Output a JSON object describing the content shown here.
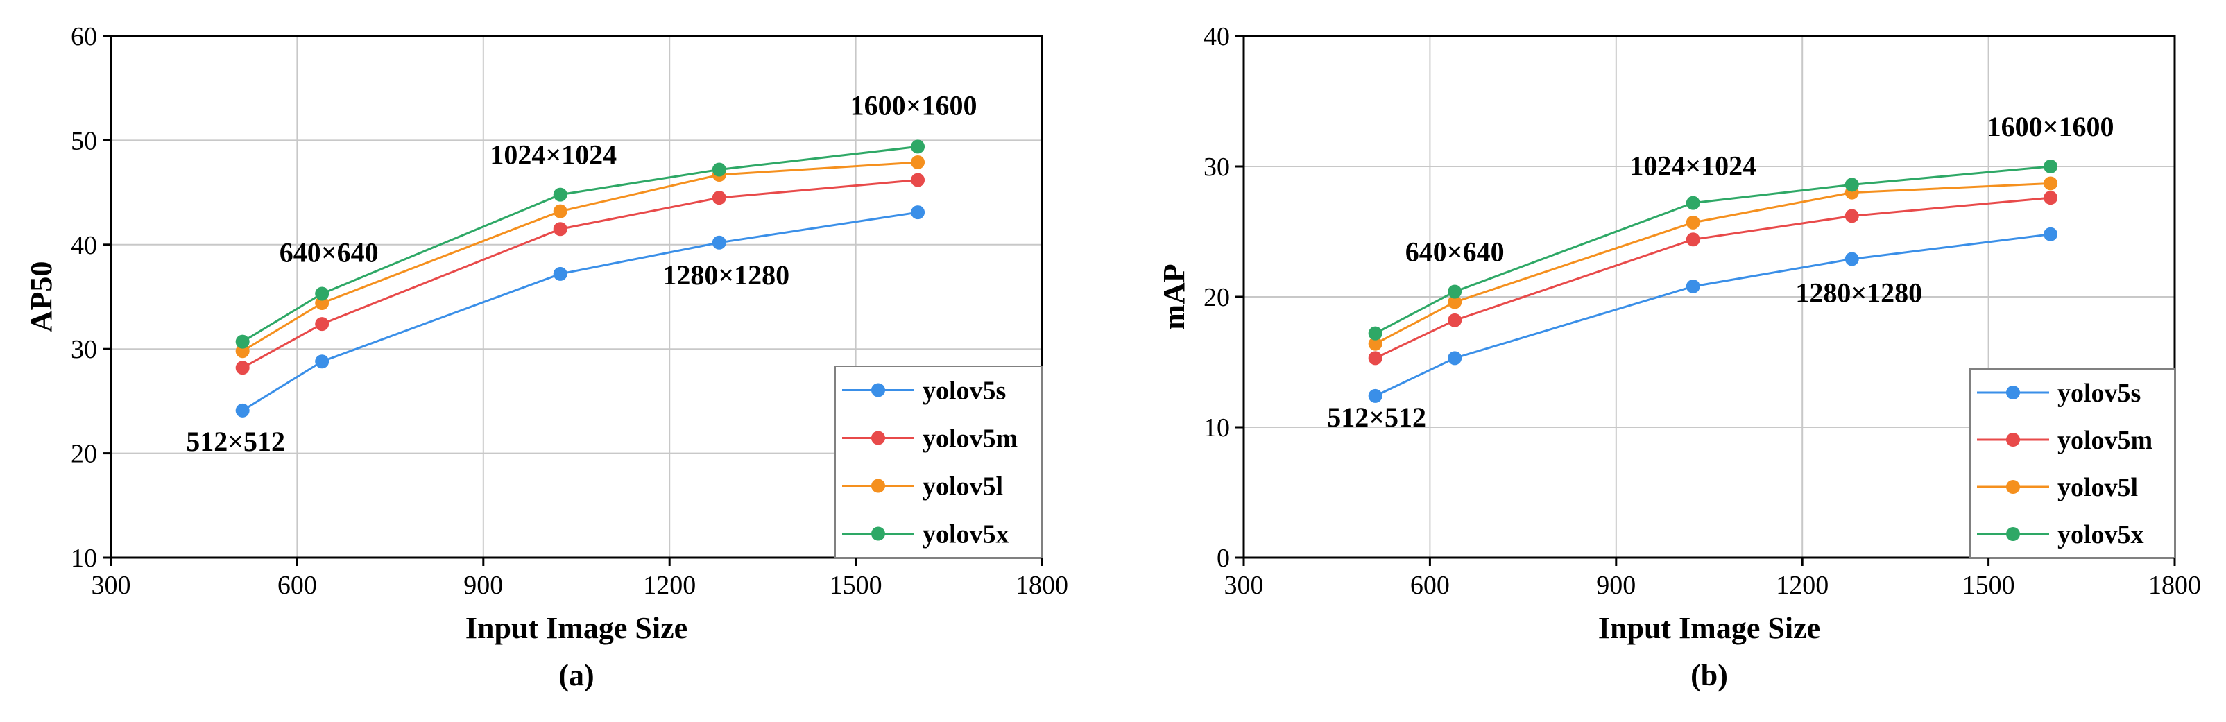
{
  "colors": {
    "yolov5s": "#3a8fe8",
    "yolov5m": "#e84a4a",
    "yolov5l": "#f5901e",
    "yolov5x": "#2ea866",
    "grid": "#c8c8c8",
    "axis": "#000000"
  },
  "chart_data": [
    {
      "type": "line",
      "subtitle": "(a)",
      "xlabel": "Input Image Size",
      "ylabel": "AP50",
      "xlim": [
        300,
        1800
      ],
      "ylim": [
        10,
        60
      ],
      "xticks": [
        300,
        600,
        900,
        1200,
        1500,
        1800
      ],
      "yticks": [
        10,
        20,
        30,
        40,
        50,
        60
      ],
      "grid": true,
      "legend": "bottom-right",
      "x": [
        512,
        640,
        1024,
        1280,
        1600
      ],
      "series": [
        {
          "name": "yolov5s",
          "values": [
            24.1,
            28.8,
            37.2,
            40.2,
            43.1
          ]
        },
        {
          "name": "yolov5m",
          "values": [
            28.2,
            32.4,
            41.5,
            44.5,
            46.2
          ]
        },
        {
          "name": "yolov5l",
          "values": [
            29.8,
            34.4,
            43.2,
            46.7,
            47.9
          ]
        },
        {
          "name": "yolov5x",
          "values": [
            30.7,
            35.3,
            44.8,
            47.2,
            49.4
          ]
        }
      ],
      "annotations": [
        {
          "text": "512×512",
          "x": 512,
          "y": 24.1
        },
        {
          "text": "640×640",
          "x": 640,
          "y": 35.3
        },
        {
          "text": "1024×1024",
          "x": 1024,
          "y": 44.8
        },
        {
          "text": "1280×1280",
          "x": 1280,
          "y": 40.2
        },
        {
          "text": "1600×1600",
          "x": 1600,
          "y": 49.4
        }
      ]
    },
    {
      "type": "line",
      "subtitle": "(b)",
      "xlabel": "Input Image Size",
      "ylabel": "mAP",
      "xlim": [
        300,
        1800
      ],
      "ylim": [
        0,
        40
      ],
      "xticks": [
        300,
        600,
        900,
        1200,
        1500,
        1800
      ],
      "yticks": [
        0,
        10,
        20,
        30,
        40
      ],
      "grid": true,
      "legend": "bottom-right",
      "x": [
        512,
        640,
        1024,
        1280,
        1600
      ],
      "series": [
        {
          "name": "yolov5s",
          "values": [
            12.4,
            15.3,
            20.8,
            22.9,
            24.8
          ]
        },
        {
          "name": "yolov5m",
          "values": [
            15.3,
            18.2,
            24.4,
            26.2,
            27.6
          ]
        },
        {
          "name": "yolov5l",
          "values": [
            16.4,
            19.6,
            25.7,
            28.0,
            28.7
          ]
        },
        {
          "name": "yolov5x",
          "values": [
            17.2,
            20.4,
            27.2,
            28.6,
            30.0
          ]
        }
      ],
      "annotations": [
        {
          "text": "512×512",
          "x": 512,
          "y": 12.4
        },
        {
          "text": "640×640",
          "x": 640,
          "y": 20.4
        },
        {
          "text": "1024×1024",
          "x": 1024,
          "y": 27.2
        },
        {
          "text": "1280×1280",
          "x": 1280,
          "y": 22.9
        },
        {
          "text": "1600×1600",
          "x": 1600,
          "y": 30.0
        }
      ]
    }
  ]
}
